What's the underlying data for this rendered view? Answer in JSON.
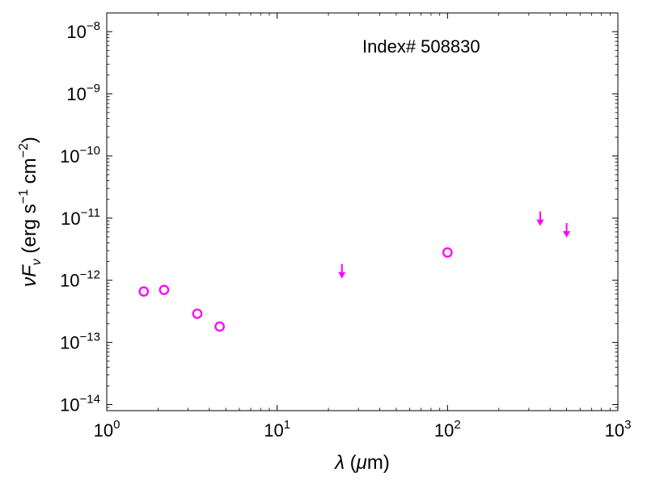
{
  "chart_data": {
    "type": "scatter",
    "annotation": "Index# 508830",
    "xlabel": {
      "sym": "λ",
      "rest": " (",
      "mu": "μ",
      "unit": "m)"
    },
    "ylabel": {
      "nu": "ν",
      "F": "F",
      "sub": "ν",
      "open": " (erg s",
      "sup1": "−1",
      "mid": " cm",
      "sup2": "−2",
      "close": ")"
    },
    "x_scale": "log",
    "y_scale": "log",
    "xlim": [
      1,
      1000
    ],
    "ylim": [
      8e-15,
      2e-08
    ],
    "x_ticks": [
      {
        "value": 1,
        "base": "10",
        "exp": "0"
      },
      {
        "value": 10,
        "base": "10",
        "exp": "1"
      },
      {
        "value": 100,
        "base": "10",
        "exp": "2"
      },
      {
        "value": 1000,
        "base": "10",
        "exp": "3"
      }
    ],
    "y_ticks": [
      {
        "value": 1e-14,
        "base": "10",
        "exp": "−14"
      },
      {
        "value": 1e-13,
        "base": "10",
        "exp": "−13"
      },
      {
        "value": 1e-12,
        "base": "10",
        "exp": "−12"
      },
      {
        "value": 1e-11,
        "base": "10",
        "exp": "−11"
      },
      {
        "value": 1e-10,
        "base": "10",
        "exp": "−10"
      },
      {
        "value": 1e-09,
        "base": "10",
        "exp": "−9"
      },
      {
        "value": 1e-08,
        "base": "10",
        "exp": "−8"
      }
    ],
    "marker_color": "#ff00ff",
    "detections": [
      {
        "x": 1.65,
        "y": 6.6e-13
      },
      {
        "x": 2.17,
        "y": 7e-13
      },
      {
        "x": 3.4,
        "y": 2.9e-13
      },
      {
        "x": 4.6,
        "y": 1.8e-13
      },
      {
        "x": 100,
        "y": 2.8e-12
      }
    ],
    "upper_limits": [
      {
        "x": 24,
        "y": 1.1e-12
      },
      {
        "x": 350,
        "y": 7.7e-12
      },
      {
        "x": 500,
        "y": 5e-12
      }
    ]
  }
}
